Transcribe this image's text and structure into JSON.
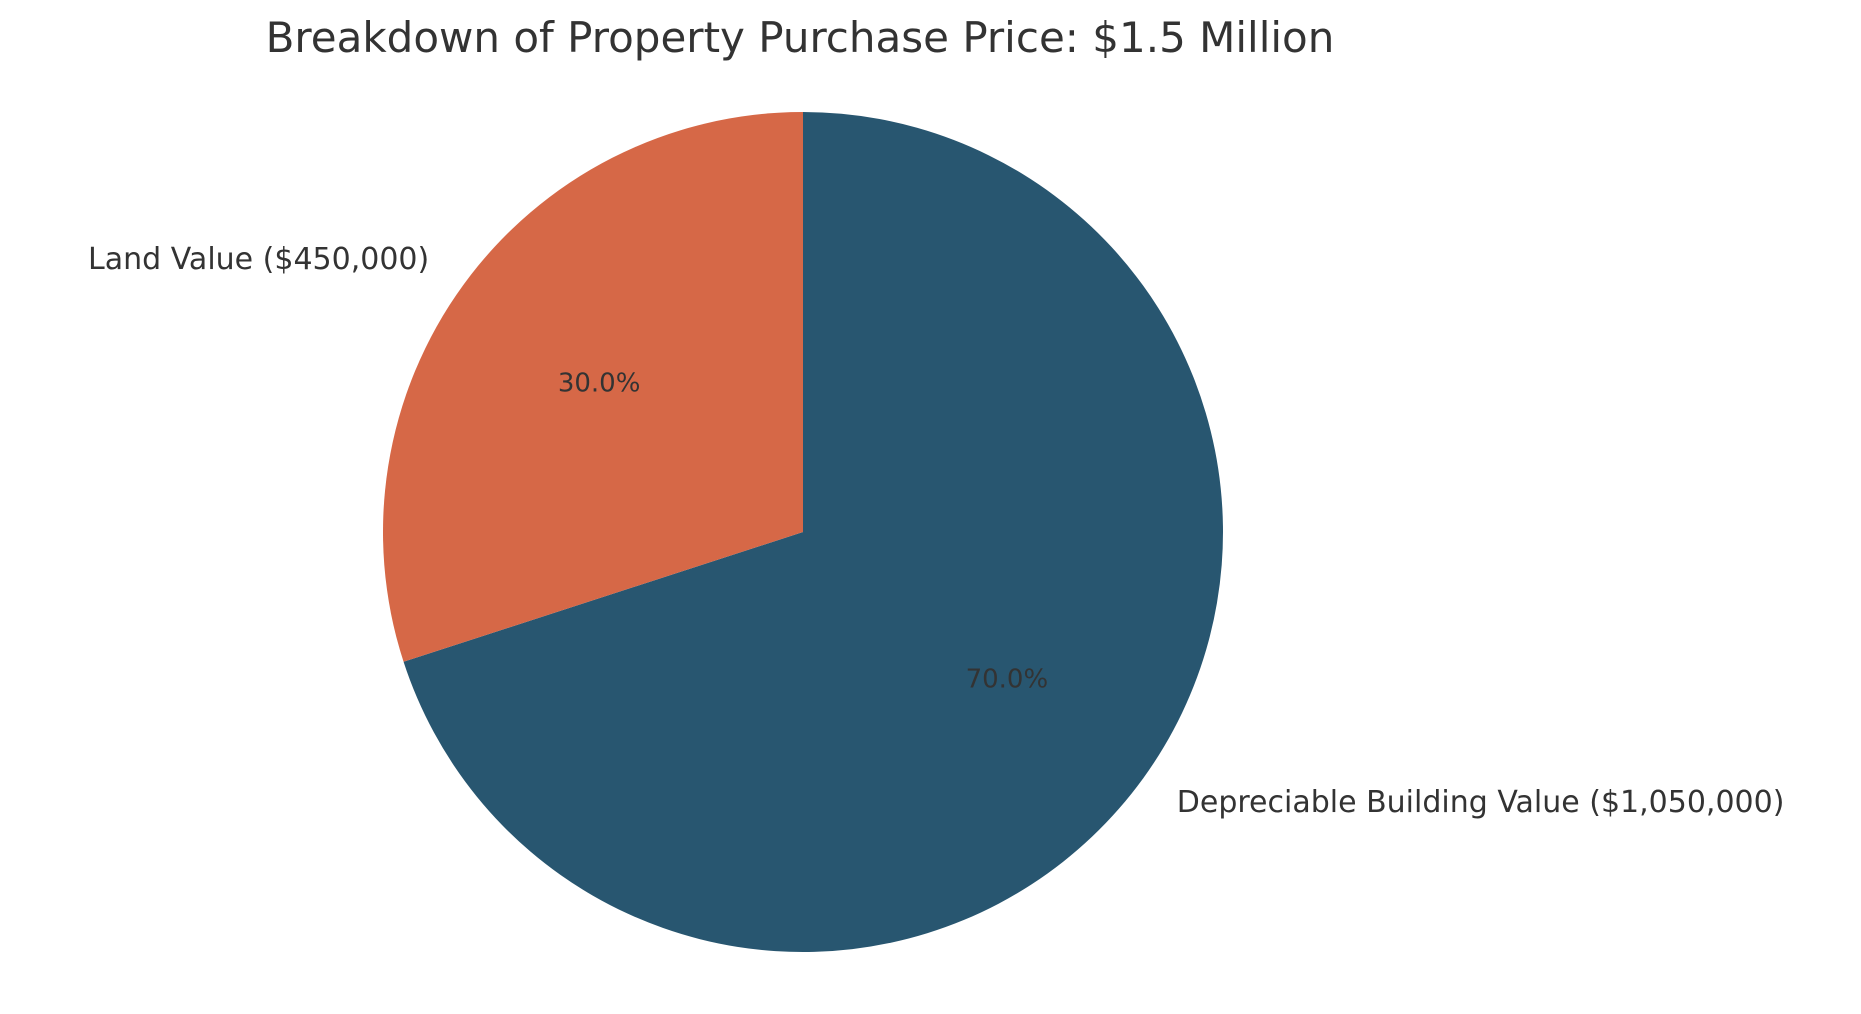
{
  "chart_data": {
    "type": "pie",
    "title": "Breakdown of Property Purchase Price: $1.5 Million",
    "slices": [
      {
        "label": "Depreciable Building Value ($1,050,000)",
        "value": 1050000,
        "percent_label": "70.0%",
        "color": "#285670"
      },
      {
        "label": "Land Value ($450,000)",
        "value": 450000,
        "percent_label": "30.0%",
        "color": "#d66847"
      }
    ],
    "start": "top",
    "direction": "clockwise",
    "legend": "none"
  }
}
